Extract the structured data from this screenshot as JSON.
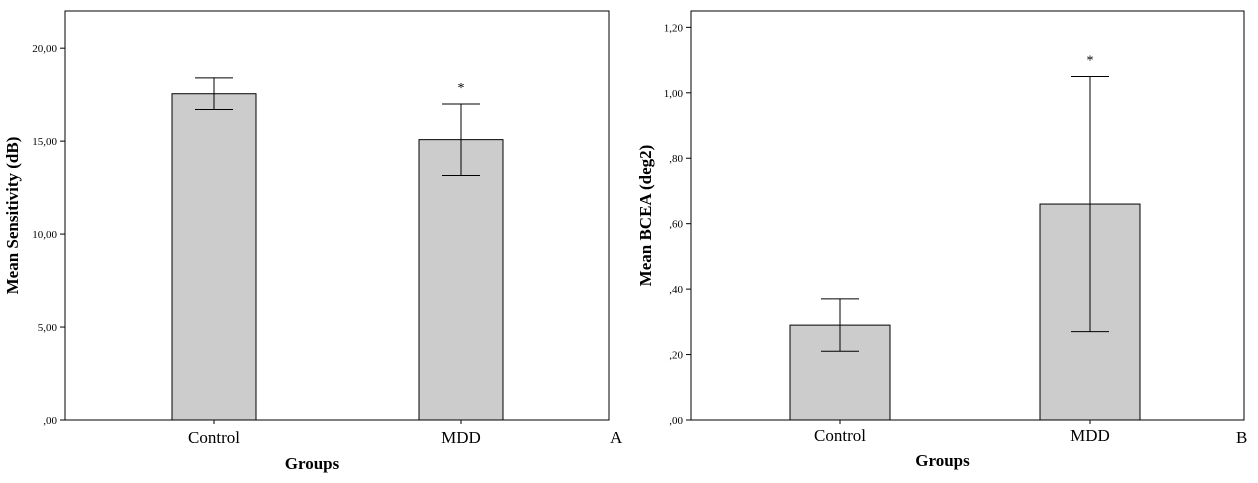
{
  "figure": {
    "background": "#ffffff",
    "bar_fill": "#cccccc",
    "stroke": "#000000"
  },
  "chart_data": [
    {
      "type": "bar",
      "panel_label": "A",
      "xlabel": "Groups",
      "ylabel": "Mean Sensitivity (dB)",
      "categories": [
        "Control",
        "MDD"
      ],
      "values": [
        17.55,
        15.08
      ],
      "error_low": [
        16.7,
        13.15
      ],
      "error_high": [
        18.4,
        17.0
      ],
      "significance": [
        "",
        "*"
      ],
      "ylim": [
        0,
        22
      ],
      "yticks": [
        0,
        5,
        10,
        15,
        20
      ],
      "ytick_labels": [
        ",00",
        "5,00",
        "10,00",
        "15,00",
        "20,00"
      ],
      "grid": false
    },
    {
      "type": "bar",
      "panel_label": "B",
      "xlabel": "Groups",
      "ylabel": "Mean BCEA (deg2)",
      "categories": [
        "Control",
        "MDD"
      ],
      "values": [
        0.29,
        0.66
      ],
      "error_low": [
        0.21,
        0.27
      ],
      "error_high": [
        0.37,
        1.05
      ],
      "significance": [
        "",
        "*"
      ],
      "ylim": [
        0,
        1.25
      ],
      "yticks": [
        0,
        0.2,
        0.4,
        0.6,
        0.8,
        1.0,
        1.2
      ],
      "ytick_labels": [
        ",00",
        ",20",
        ",40",
        ",60",
        ",80",
        "1,00",
        "1,20"
      ],
      "grid": false
    }
  ]
}
